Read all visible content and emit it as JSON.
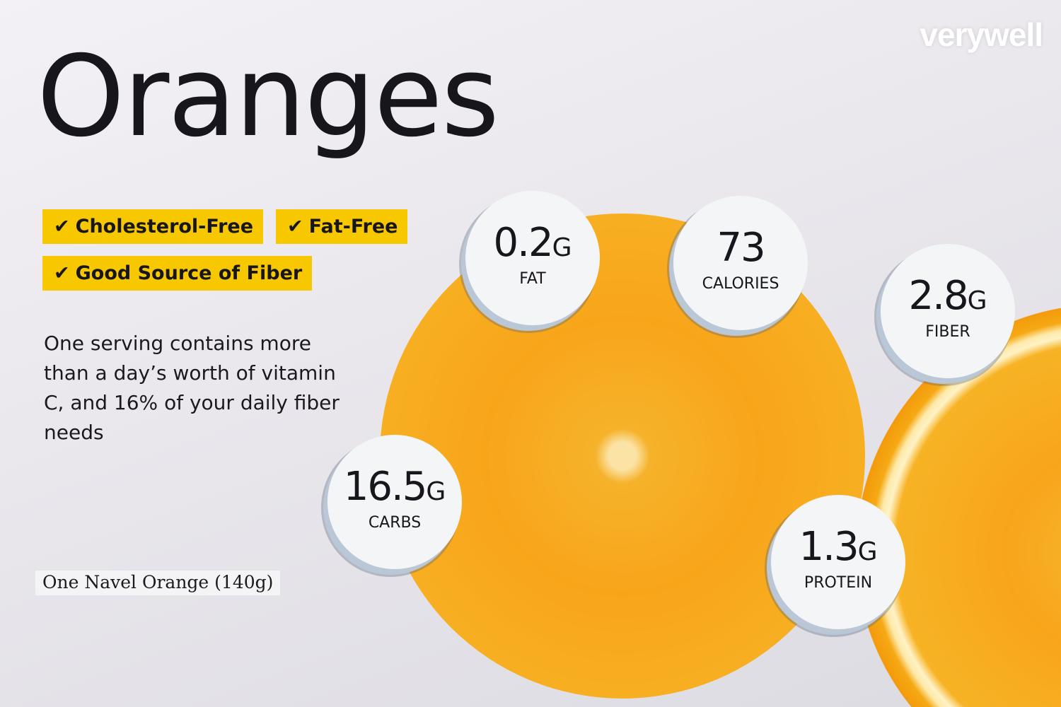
{
  "brand": {
    "logo": "verywell"
  },
  "title": "Oranges",
  "tags": [
    {
      "icon": "check-icon",
      "label": "Cholesterol-Free"
    },
    {
      "icon": "check-icon",
      "label": "Fat-Free"
    },
    {
      "icon": "check-icon",
      "label": "Good Source of Fiber"
    }
  ],
  "description": "One serving contains more than a day’s worth of vitamin C, and 16% of your daily fiber needs",
  "serving": "One Navel Orange (140g)",
  "nutrients": [
    {
      "value": "0.2",
      "unit": "G",
      "label": "FAT"
    },
    {
      "value": "73",
      "unit": "",
      "label": "CALORIES"
    },
    {
      "value": "2.8",
      "unit": "G",
      "label": "FIBER"
    },
    {
      "value": "16.5",
      "unit": "G",
      "label": "CARBS"
    },
    {
      "value": "1.3",
      "unit": "G",
      "label": "PROTEIN"
    }
  ],
  "colors": {
    "tag_background": "#f7c800",
    "text": "#16161c",
    "orange": "#f8a51a"
  }
}
